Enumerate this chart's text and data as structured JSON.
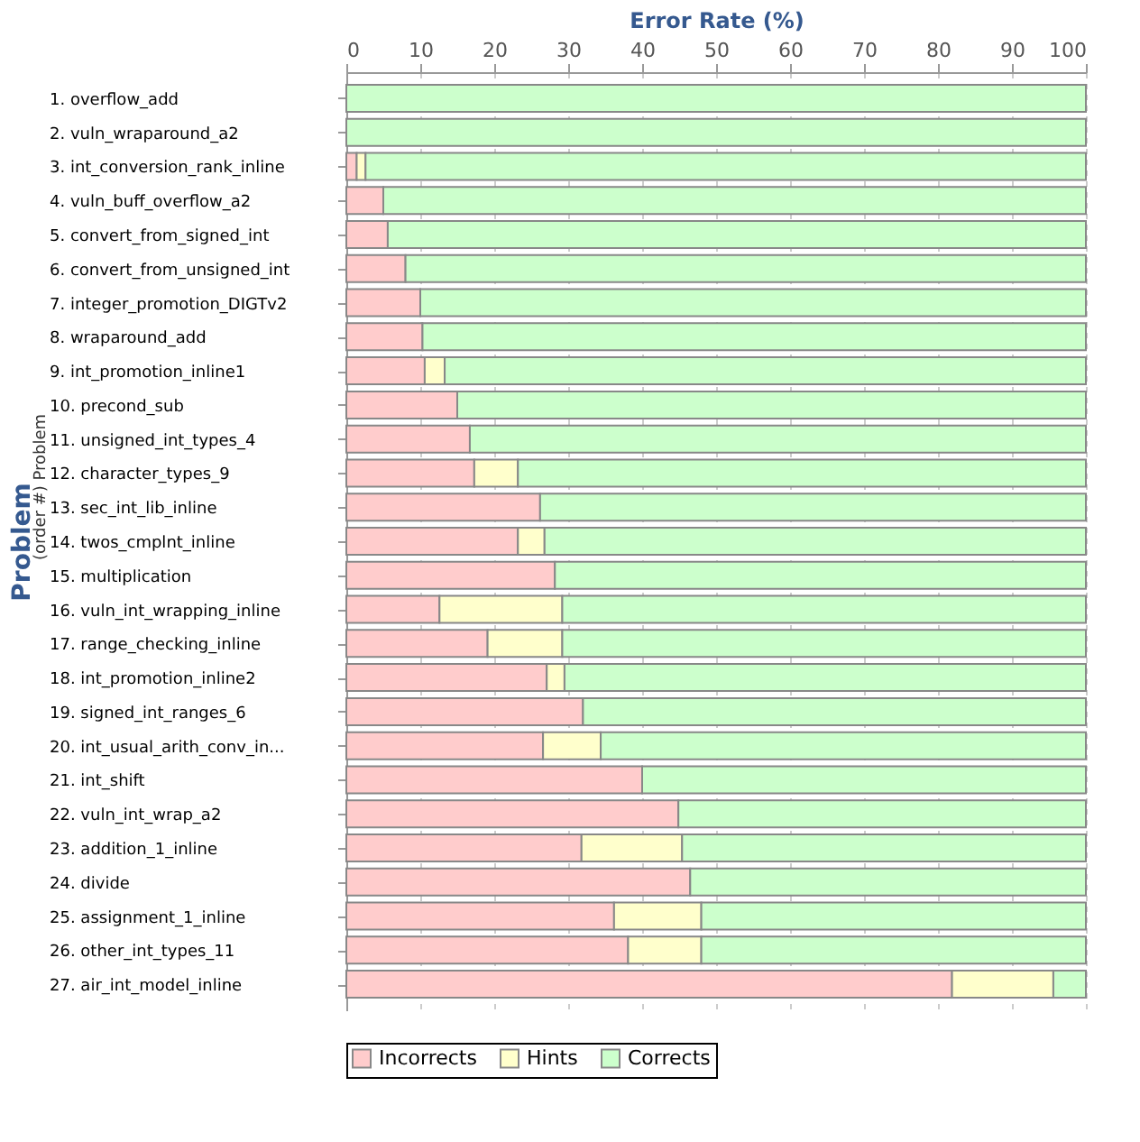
{
  "chart_data": {
    "type": "bar",
    "orientation": "horizontal",
    "stacked": true,
    "xlabel": "Error Rate (%)",
    "ylabel": "Problem",
    "annotations": [
      "(order #) Problem"
    ],
    "categories": [
      "1. overflow_add",
      "2. vuln_wraparound_a2",
      "3. int_conversion_rank_inline",
      "4. vuln_buff_overflow_a2",
      "5. convert_from_signed_int",
      "6. convert_from_unsigned_int",
      "7. integer_promotion_DIGTv2",
      "8. wraparound_add",
      "9. int_promotion_inline1",
      "10. precond_sub",
      "11. unsigned_int_types_4",
      "12. character_types_9",
      "13. sec_int_lib_inline",
      "14. twos_cmplnt_inline",
      "15. multiplication",
      "16. vuln_int_wrapping_inline",
      "17. range_checking_inline",
      "18. int_promotion_inline2",
      "19. signed_int_ranges_6",
      "20. int_usual_arith_conv_in...",
      "21. int_shift",
      "22. vuln_int_wrap_a2",
      "23. addition_1_inline",
      "24. divide",
      "25. assignment_1_inline",
      "26. other_int_types_11",
      "27. air_int_model_inline"
    ],
    "series": [
      {
        "name": "Incorrects",
        "color": "#ffcccc",
        "values": [
          0,
          0,
          1.4,
          5.0,
          5.6,
          8.0,
          10.0,
          10.3,
          10.6,
          15.0,
          16.7,
          17.3,
          26.2,
          23.2,
          28.2,
          12.6,
          19.1,
          27.1,
          32.0,
          26.6,
          40.0,
          44.9,
          31.8,
          46.5,
          36.2,
          38.1,
          81.9
        ]
      },
      {
        "name": "Hints",
        "color": "#ffffcc",
        "values": [
          0,
          0,
          1.2,
          0,
          0,
          0,
          0,
          0,
          2.7,
          0,
          0,
          5.9,
          0,
          3.6,
          0,
          16.6,
          10.1,
          2.4,
          0,
          7.8,
          0,
          0,
          13.6,
          0,
          11.8,
          9.9,
          13.7
        ]
      },
      {
        "name": "Corrects",
        "color": "#ccffcc",
        "values": [
          100,
          100,
          97.4,
          95.0,
          94.4,
          92.0,
          90.0,
          89.7,
          86.7,
          85.0,
          83.3,
          76.8,
          73.8,
          73.2,
          71.8,
          70.8,
          70.8,
          70.5,
          68.0,
          65.6,
          60.0,
          55.1,
          54.6,
          53.5,
          52.0,
          52.0,
          4.4
        ]
      }
    ],
    "xlim": [
      0,
      100
    ],
    "xticks": [
      0,
      10,
      20,
      30,
      40,
      50,
      60,
      70,
      80,
      90,
      100
    ],
    "grid": "x",
    "legend": "bottom"
  }
}
